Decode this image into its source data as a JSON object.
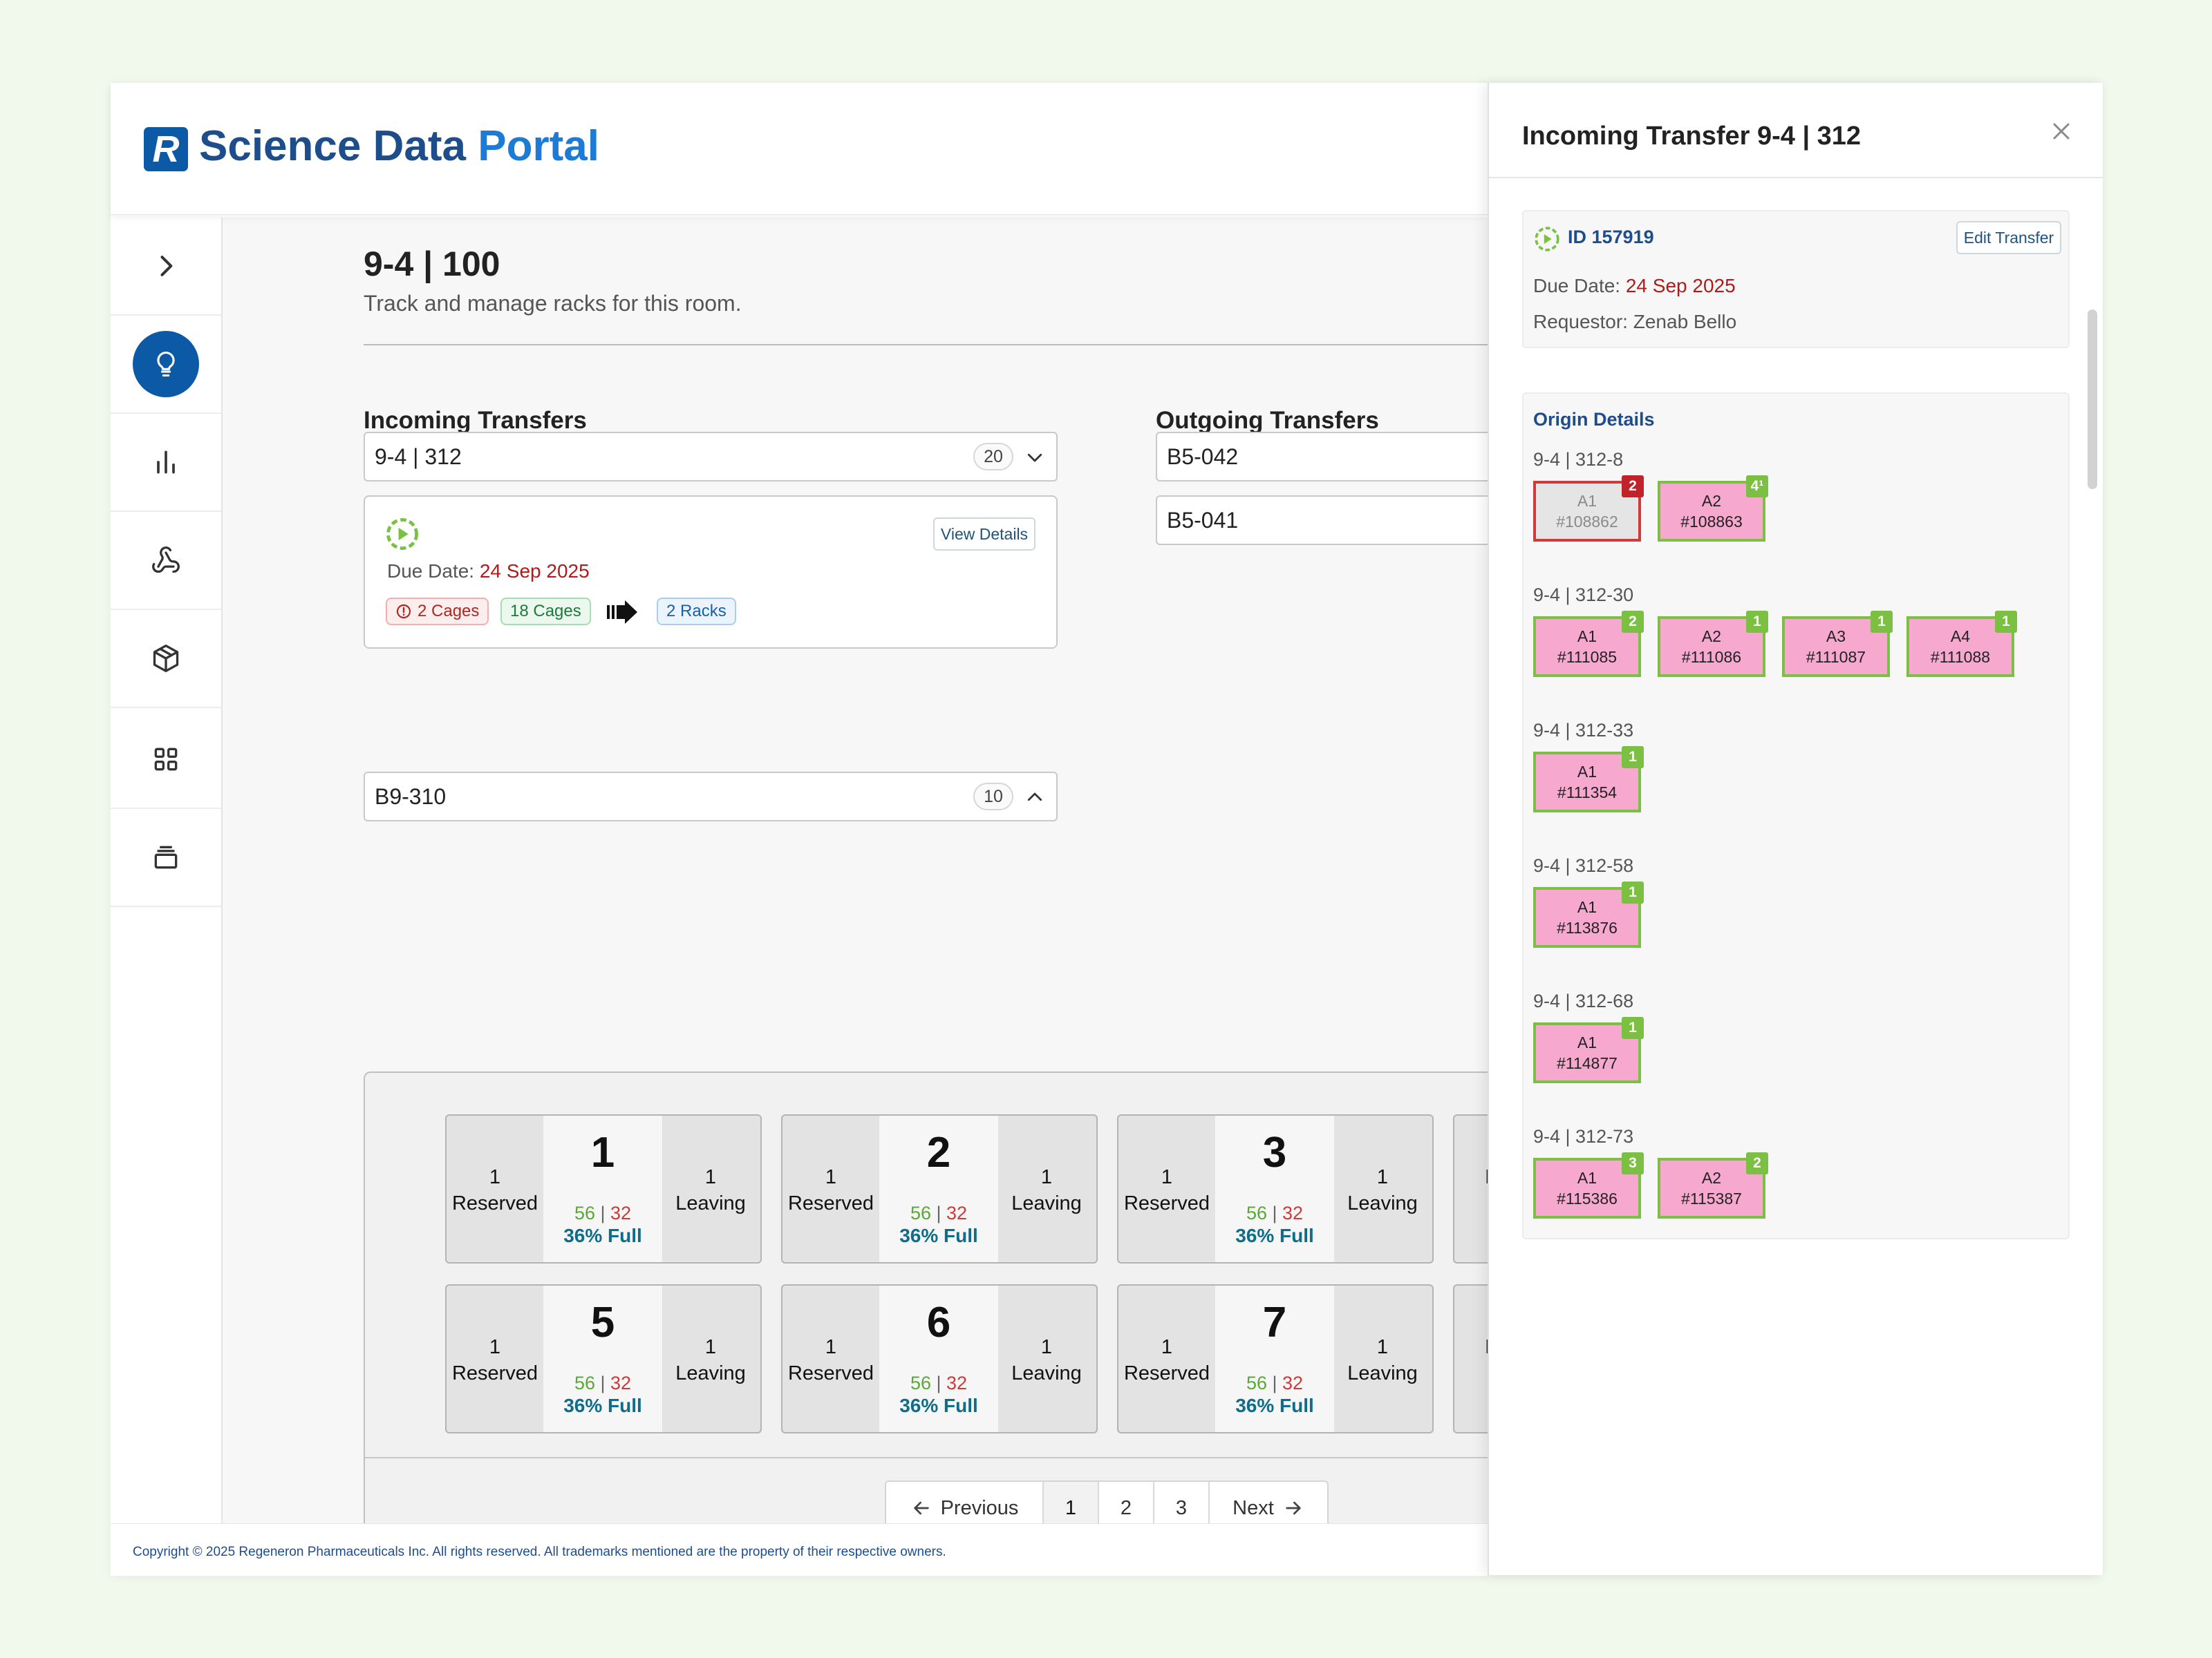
{
  "app": {
    "logo_letter": "R",
    "title_main": "Science Data ",
    "title_accent": "Portal"
  },
  "sidebar": {
    "items": [
      {
        "name": "chevron-right-icon"
      },
      {
        "name": "lightbulb-icon",
        "active": true
      },
      {
        "name": "bar-chart-icon"
      },
      {
        "name": "webhook-icon"
      },
      {
        "name": "package-icon"
      },
      {
        "name": "grid-icon"
      },
      {
        "name": "stack-icon"
      }
    ]
  },
  "page": {
    "title": "9-4 | 100",
    "subtitle": "Track and manage racks for this room."
  },
  "incoming": {
    "title": "Incoming Transfers",
    "groups": [
      {
        "label": "9-4 | 312",
        "count": "20",
        "expanded": true
      },
      {
        "label": "B9-310",
        "count": "10",
        "expanded": false
      }
    ],
    "card": {
      "view_details": "View Details",
      "due_label": "Due Date: ",
      "due_date": "24 Sep 2025",
      "chips": {
        "alert": "2 Cages",
        "cages": "18 Cages",
        "racks": "2 Racks"
      }
    }
  },
  "outgoing": {
    "title": "Outgoing Transfers",
    "groups": [
      {
        "label": "B5-042"
      },
      {
        "label": "B5-041"
      }
    ]
  },
  "racks": [
    {
      "number": "1",
      "reserved": "1",
      "reserved_label": "Reserved",
      "leaving": "1",
      "leaving_label": "Leaving",
      "green": "56",
      "red": "32",
      "full": "36% Full"
    },
    {
      "number": "2",
      "reserved": "1",
      "reserved_label": "Reserved",
      "leaving": "1",
      "leaving_label": "Leaving",
      "green": "56",
      "red": "32",
      "full": "36% Full"
    },
    {
      "number": "3",
      "reserved": "1",
      "reserved_label": "Reserved",
      "leaving": "1",
      "leaving_label": "Leaving",
      "green": "56",
      "red": "32",
      "full": "36% Full"
    },
    {
      "number": "",
      "reserved": "",
      "reserved_label": "Res",
      "leaving": "",
      "leaving_label": "",
      "green": "",
      "red": "",
      "full": ""
    },
    {
      "number": "5",
      "reserved": "1",
      "reserved_label": "Reserved",
      "leaving": "1",
      "leaving_label": "Leaving",
      "green": "56",
      "red": "32",
      "full": "36% Full"
    },
    {
      "number": "6",
      "reserved": "1",
      "reserved_label": "Reserved",
      "leaving": "1",
      "leaving_label": "Leaving",
      "green": "56",
      "red": "32",
      "full": "36% Full"
    },
    {
      "number": "7",
      "reserved": "1",
      "reserved_label": "Reserved",
      "leaving": "1",
      "leaving_label": "Leaving",
      "green": "56",
      "red": "32",
      "full": "36% Full"
    },
    {
      "number": "",
      "reserved": "",
      "reserved_label": "Res",
      "leaving": "",
      "leaving_label": "",
      "green": "",
      "red": "",
      "full": ""
    }
  ],
  "pagination": {
    "previous": "Previous",
    "pages": [
      "1",
      "2",
      "3"
    ],
    "current": "1",
    "next": "Next"
  },
  "footer": {
    "text": "Copyright © 2025 Regeneron Pharmaceuticals Inc. All rights reserved. All trademarks mentioned are the property of their respective owners."
  },
  "drawer": {
    "title": "Incoming Transfer 9-4 | 312",
    "id_label": "ID 157919",
    "edit_label": "Edit Transfer",
    "due_label": "Due Date: ",
    "due_date": "24 Sep 2025",
    "requestor": "Requestor: Zenab Bello",
    "origin_title": "Origin Details",
    "groups": [
      {
        "label": "9-4 | 312-8",
        "cages": [
          {
            "pos": "A1",
            "id": "#108862",
            "badge": "2",
            "status": "inactive"
          },
          {
            "pos": "A2",
            "id": "#108863",
            "badge": "4¹",
            "status": "active"
          }
        ]
      },
      {
        "label": "9-4 | 312-30",
        "cages": [
          {
            "pos": "A1",
            "id": "#111085",
            "badge": "2",
            "status": "active"
          },
          {
            "pos": "A2",
            "id": "#111086",
            "badge": "1",
            "status": "active"
          },
          {
            "pos": "A3",
            "id": "#111087",
            "badge": "1",
            "status": "active"
          },
          {
            "pos": "A4",
            "id": "#111088",
            "badge": "1",
            "status": "active"
          }
        ]
      },
      {
        "label": "9-4 | 312-33",
        "cages": [
          {
            "pos": "A1",
            "id": "#111354",
            "badge": "1",
            "status": "active"
          }
        ]
      },
      {
        "label": "9-4 | 312-58",
        "cages": [
          {
            "pos": "A1",
            "id": "#113876",
            "badge": "1",
            "status": "active"
          }
        ]
      },
      {
        "label": "9-4 | 312-68",
        "cages": [
          {
            "pos": "A1",
            "id": "#114877",
            "badge": "1",
            "status": "active"
          }
        ]
      },
      {
        "label": "9-4 | 312-73",
        "cages": [
          {
            "pos": "A1",
            "id": "#115386",
            "badge": "3",
            "status": "active"
          },
          {
            "pos": "A2",
            "id": "#115387",
            "badge": "2",
            "status": "active"
          }
        ]
      }
    ]
  },
  "colors": {
    "brand": "#0c5aa6",
    "cage_fill": "#f7a8cf",
    "cage_border": "#7bc043",
    "alert": "#c0242a",
    "percent": "#0d6d8a"
  }
}
